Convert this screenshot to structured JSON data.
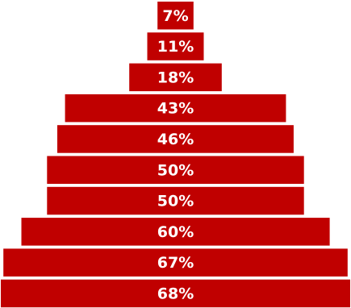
{
  "chart_data": {
    "type": "bar",
    "orientation": "horizontal",
    "layout": "centered-funnel",
    "bar_color": "#c00000",
    "label_color": "#ffffff",
    "values": [
      7,
      11,
      18,
      43,
      46,
      50,
      50,
      60,
      67,
      68
    ],
    "labels": [
      "7%",
      "11%",
      "18%",
      "43%",
      "46%",
      "50%",
      "50%",
      "60%",
      "67%",
      "68%"
    ]
  }
}
